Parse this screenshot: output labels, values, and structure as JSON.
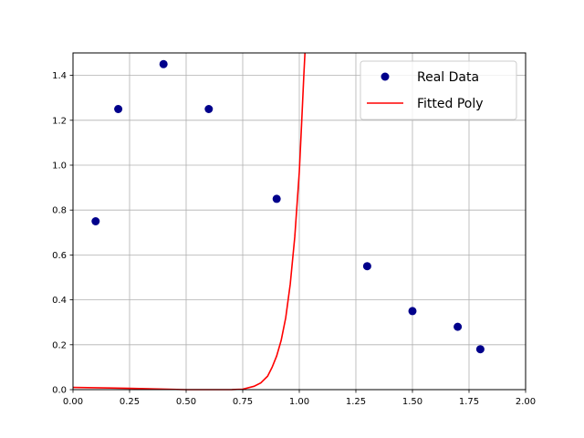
{
  "chart_data": {
    "type": "scatter",
    "title": "",
    "xlabel": "",
    "ylabel": "",
    "xlim": [
      0.0,
      2.0
    ],
    "ylim": [
      0.0,
      1.5
    ],
    "xticks": [
      "0.00",
      "0.25",
      "0.50",
      "0.75",
      "1.00",
      "1.25",
      "1.50",
      "1.75",
      "2.00"
    ],
    "yticks": [
      "0.0",
      "0.2",
      "0.4",
      "0.6",
      "0.8",
      "1.0",
      "1.2",
      "1.4"
    ],
    "grid": true,
    "legend_position": "top-right",
    "series": [
      {
        "name": "Real Data",
        "kind": "scatter",
        "color": "#00008b",
        "points": [
          {
            "x": 0.1,
            "y": 0.75
          },
          {
            "x": 0.2,
            "y": 1.25
          },
          {
            "x": 0.4,
            "y": 1.45
          },
          {
            "x": 0.6,
            "y": 1.25
          },
          {
            "x": 0.9,
            "y": 0.85
          },
          {
            "x": 1.3,
            "y": 0.55
          },
          {
            "x": 1.5,
            "y": 0.35
          },
          {
            "x": 1.7,
            "y": 0.28
          },
          {
            "x": 1.8,
            "y": 0.18
          }
        ]
      },
      {
        "name": "Fitted Poly",
        "kind": "line",
        "color": "#ff0000",
        "points": [
          {
            "x": 0.0,
            "y": 0.01
          },
          {
            "x": 0.25,
            "y": 0.006
          },
          {
            "x": 0.5,
            "y": 0.0
          },
          {
            "x": 0.6,
            "y": 0.0
          },
          {
            "x": 0.7,
            "y": 0.0
          },
          {
            "x": 0.75,
            "y": 0.002
          },
          {
            "x": 0.8,
            "y": 0.015
          },
          {
            "x": 0.83,
            "y": 0.03
          },
          {
            "x": 0.86,
            "y": 0.06
          },
          {
            "x": 0.88,
            "y": 0.1
          },
          {
            "x": 0.9,
            "y": 0.15
          },
          {
            "x": 0.92,
            "y": 0.22
          },
          {
            "x": 0.94,
            "y": 0.32
          },
          {
            "x": 0.96,
            "y": 0.47
          },
          {
            "x": 0.98,
            "y": 0.68
          },
          {
            "x": 1.0,
            "y": 0.97
          },
          {
            "x": 1.01,
            "y": 1.18
          },
          {
            "x": 1.02,
            "y": 1.4
          },
          {
            "x": 1.025,
            "y": 1.5
          }
        ]
      }
    ]
  }
}
